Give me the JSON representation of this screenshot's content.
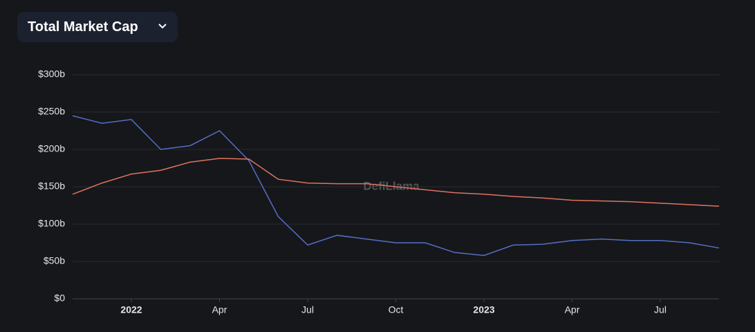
{
  "header": {
    "title": "Total Market Cap"
  },
  "chart_data": {
    "type": "line",
    "watermark": "DefiLlama",
    "x": [
      "2021-11",
      "2021-12",
      "2022-01",
      "2022-02",
      "2022-03",
      "2022-04",
      "2022-05",
      "2022-06",
      "2022-07",
      "2022-08",
      "2022-09",
      "2022-10",
      "2022-11",
      "2022-12",
      "2023-01",
      "2023-02",
      "2023-03",
      "2023-04",
      "2023-05",
      "2023-06",
      "2023-07",
      "2023-08",
      "2023-09"
    ],
    "series": [
      {
        "color": "#5470c6",
        "values": [
          245,
          235,
          240,
          200,
          205,
          225,
          185,
          110,
          72,
          85,
          80,
          75,
          75,
          62,
          58,
          72,
          73,
          78,
          80,
          78,
          78,
          75,
          68
        ]
      },
      {
        "color": "#e0735f",
        "values": [
          140,
          155,
          167,
          172,
          183,
          188,
          187,
          160,
          155,
          154,
          154,
          150,
          146,
          142,
          140,
          137,
          135,
          132,
          131,
          130,
          128,
          126,
          124
        ]
      }
    ],
    "xlim": [
      "2021-11",
      "2023-09"
    ],
    "xticks": [
      {
        "value": "2022-01",
        "label": "2022"
      },
      {
        "value": "2022-04",
        "label": "Apr"
      },
      {
        "value": "2022-07",
        "label": "Jul"
      },
      {
        "value": "2022-10",
        "label": "Oct"
      },
      {
        "value": "2023-01",
        "label": "2023"
      },
      {
        "value": "2023-04",
        "label": "Apr"
      },
      {
        "value": "2023-07",
        "label": "Jul"
      }
    ],
    "ylim": [
      0,
      300
    ],
    "yticks": [
      {
        "value": 0,
        "label": "$0"
      },
      {
        "value": 50,
        "label": "$50b"
      },
      {
        "value": 100,
        "label": "$100b"
      },
      {
        "value": 150,
        "label": "$150b"
      },
      {
        "value": 200,
        "label": "$200b"
      },
      {
        "value": 250,
        "label": "$250b"
      },
      {
        "value": 300,
        "label": "$300b"
      }
    ],
    "grid": true
  }
}
